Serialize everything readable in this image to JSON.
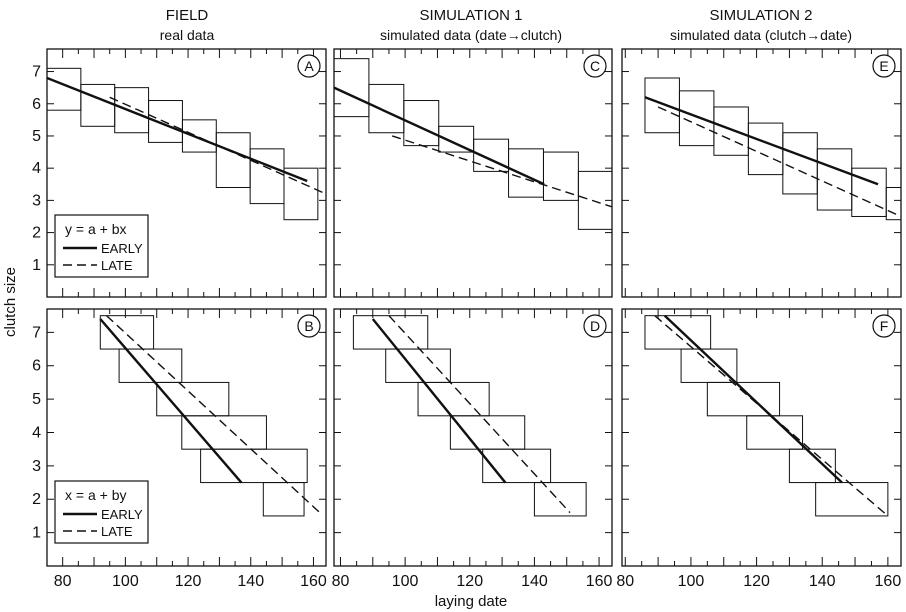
{
  "figure": {
    "columns": [
      {
        "title": "FIELD",
        "subtitle": "real data"
      },
      {
        "title": "SIMULATION 1",
        "subtitle": "simulated data  (date→clutch)"
      },
      {
        "title": "SIMULATION 2",
        "subtitle": "simulated data  (clutch→date)"
      }
    ],
    "xlabel": "laying date",
    "ylabel": "clutch size",
    "legends": {
      "top": {
        "equation": "y = a + bx",
        "early": "EARLY",
        "late": "LATE"
      },
      "bottom": {
        "equation": "x = a + by",
        "early": "EARLY",
        "late": "LATE"
      }
    }
  },
  "chart_data": [
    {
      "panel": "A",
      "type": "line",
      "row": "top",
      "column": 1,
      "xlim": [
        75,
        164
      ],
      "ylim": [
        0,
        7.7
      ],
      "xticks": [
        80,
        100,
        120,
        140,
        160
      ],
      "yticks": [
        1,
        2,
        3,
        4,
        5,
        6,
        7
      ],
      "boxes": {
        "x_start": 75,
        "x_step": 10.8,
        "upper": [
          7.1,
          6.6,
          6.5,
          6.1,
          5.5,
          5.1,
          4.6,
          4.0
        ],
        "lower": [
          5.8,
          5.3,
          5.1,
          4.8,
          4.5,
          3.4,
          2.9,
          2.4
        ]
      },
      "series": [
        {
          "name": "EARLY",
          "style": "solid",
          "x": [
            75,
            158
          ],
          "y": [
            6.8,
            3.6
          ]
        },
        {
          "name": "LATE",
          "style": "dashed",
          "x": [
            95,
            164
          ],
          "y": [
            6.2,
            3.2
          ]
        }
      ]
    },
    {
      "panel": "B",
      "type": "line",
      "row": "bottom",
      "column": 1,
      "xlim": [
        75,
        164
      ],
      "ylim": [
        0,
        7.7
      ],
      "xticks": [
        80,
        100,
        120,
        140,
        160
      ],
      "yticks": [
        1,
        2,
        3,
        4,
        5,
        6,
        7
      ],
      "boxes": {
        "y_levels": [
          7,
          6,
          5,
          4,
          3,
          2
        ],
        "left": [
          92,
          98,
          110,
          118,
          124,
          144
        ],
        "right": [
          109,
          118,
          133,
          145,
          158,
          157
        ]
      },
      "series": [
        {
          "name": "EARLY",
          "style": "solid",
          "x": [
            92,
            137
          ],
          "y": [
            7.4,
            2.5
          ]
        },
        {
          "name": "LATE",
          "style": "dashed",
          "x": [
            94,
            162
          ],
          "y": [
            7.5,
            1.6
          ]
        }
      ]
    },
    {
      "panel": "C",
      "type": "line",
      "row": "top",
      "column": 2,
      "xlim": [
        78,
        164
      ],
      "ylim": [
        0,
        7.7
      ],
      "xticks": [
        80,
        100,
        120,
        140,
        160
      ],
      "yticks": [
        1,
        2,
        3,
        4,
        5,
        6,
        7
      ],
      "boxes": {
        "x_start": 78,
        "x_step": 10.8,
        "upper": [
          7.4,
          6.6,
          6.1,
          5.3,
          4.9,
          4.6,
          4.5,
          3.9
        ],
        "lower": [
          5.6,
          5.1,
          4.7,
          4.5,
          3.9,
          3.1,
          3.0,
          2.1
        ]
      },
      "series": [
        {
          "name": "EARLY",
          "style": "solid",
          "x": [
            78,
            143
          ],
          "y": [
            6.5,
            3.5
          ]
        },
        {
          "name": "LATE",
          "style": "dashed",
          "x": [
            96,
            164
          ],
          "y": [
            5.0,
            2.8
          ]
        }
      ]
    },
    {
      "panel": "D",
      "type": "line",
      "row": "bottom",
      "column": 2,
      "xlim": [
        78,
        164
      ],
      "ylim": [
        0,
        7.7
      ],
      "xticks": [
        80,
        100,
        120,
        140,
        160
      ],
      "yticks": [
        1,
        2,
        3,
        4,
        5,
        6,
        7
      ],
      "boxes": {
        "y_levels": [
          7,
          6,
          5,
          4,
          3,
          2
        ],
        "left": [
          84,
          94,
          104,
          114,
          124,
          140
        ],
        "right": [
          107,
          114,
          126,
          137,
          145,
          156
        ]
      },
      "series": [
        {
          "name": "EARLY",
          "style": "solid",
          "x": [
            90,
            131
          ],
          "y": [
            7.4,
            2.5
          ]
        },
        {
          "name": "LATE",
          "style": "dashed",
          "x": [
            95,
            151
          ],
          "y": [
            7.5,
            1.6
          ]
        }
      ]
    },
    {
      "panel": "E",
      "type": "line",
      "row": "top",
      "column": 3,
      "xlim": [
        79,
        164
      ],
      "ylim": [
        0,
        7.7
      ],
      "xticks": [
        80,
        100,
        120,
        140,
        160
      ],
      "yticks": [
        1,
        2,
        3,
        4,
        5,
        6,
        7
      ],
      "boxes": {
        "x_start": 86,
        "x_step": 10.5,
        "upper": [
          6.8,
          6.4,
          5.9,
          5.4,
          5.1,
          4.6,
          4.0,
          3.4
        ],
        "lower": [
          5.1,
          4.7,
          4.4,
          3.8,
          3.2,
          2.7,
          2.5,
          2.4
        ]
      },
      "series": [
        {
          "name": "EARLY",
          "style": "solid",
          "x": [
            86,
            157
          ],
          "y": [
            6.2,
            3.5
          ]
        },
        {
          "name": "LATE",
          "style": "dashed",
          "x": [
            90,
            164
          ],
          "y": [
            5.9,
            2.5
          ]
        }
      ]
    },
    {
      "panel": "F",
      "type": "line",
      "row": "bottom",
      "column": 3,
      "xlim": [
        79,
        164
      ],
      "ylim": [
        0,
        7.7
      ],
      "xticks": [
        80,
        100,
        120,
        140,
        160
      ],
      "yticks": [
        1,
        2,
        3,
        4,
        5,
        6,
        7
      ],
      "boxes": {
        "y_levels": [
          7,
          6,
          5,
          4,
          3,
          2
        ],
        "left": [
          86,
          97,
          105,
          117,
          130,
          138
        ],
        "right": [
          106,
          114,
          127,
          134,
          144,
          160
        ]
      },
      "series": [
        {
          "name": "EARLY",
          "style": "solid",
          "x": [
            92,
            146
          ],
          "y": [
            7.5,
            2.5
          ]
        },
        {
          "name": "LATE",
          "style": "dashed",
          "x": [
            89,
            160
          ],
          "y": [
            7.5,
            1.5
          ]
        }
      ]
    }
  ]
}
